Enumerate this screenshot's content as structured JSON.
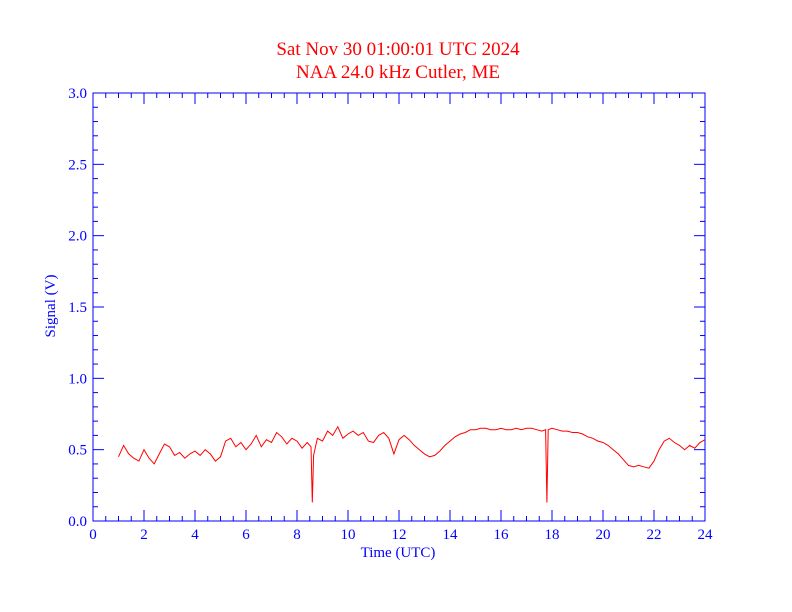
{
  "chart_data": {
    "type": "line",
    "title": "Sat Nov 30 01:00:01 UTC 2024",
    "subtitle": "NAA 24.0 kHz Cutler, ME",
    "xlabel": "Time (UTC)",
    "ylabel": "Signal (V)",
    "xlim": [
      0,
      24
    ],
    "ylim": [
      0.0,
      3.0
    ],
    "xticks": [
      "0",
      "2",
      "4",
      "6",
      "8",
      "10",
      "12",
      "14",
      "16",
      "18",
      "20",
      "22",
      "24"
    ],
    "yticks": [
      "0.0",
      "0.5",
      "1.0",
      "1.5",
      "2.0",
      "2.5",
      "3.0"
    ],
    "grid": false,
    "colors": {
      "axis": "#0000ff",
      "title": "#ff0000",
      "series": "#ff0000"
    },
    "series": [
      {
        "x": [
          1.0,
          1.2,
          1.4,
          1.6,
          1.8,
          2.0,
          2.2,
          2.4,
          2.6,
          2.8,
          3.0,
          3.2,
          3.4,
          3.6,
          3.8,
          4.0,
          4.2,
          4.4,
          4.6,
          4.8,
          5.0,
          5.2,
          5.4,
          5.6,
          5.8,
          6.0,
          6.2,
          6.4,
          6.6,
          6.8,
          7.0,
          7.2,
          7.4,
          7.6,
          7.8,
          8.0,
          8.2,
          8.4,
          8.55,
          8.6,
          8.65,
          8.8,
          9.0,
          9.2,
          9.4,
          9.6,
          9.8,
          10.0,
          10.2,
          10.4,
          10.6,
          10.8,
          11.0,
          11.2,
          11.4,
          11.6,
          11.8,
          12.0,
          12.2,
          12.4,
          12.6,
          12.8,
          13.0,
          13.2,
          13.4,
          13.6,
          13.8,
          14.0,
          14.2,
          14.4,
          14.6,
          14.8,
          15.0,
          15.2,
          15.4,
          15.6,
          15.8,
          16.0,
          16.2,
          16.4,
          16.6,
          16.8,
          17.0,
          17.2,
          17.4,
          17.6,
          17.75,
          17.8,
          17.85,
          18.0,
          18.2,
          18.4,
          18.6,
          18.8,
          19.0,
          19.2,
          19.4,
          19.6,
          19.8,
          20.0,
          20.2,
          20.4,
          20.6,
          20.8,
          21.0,
          21.2,
          21.4,
          21.6,
          21.8,
          22.0,
          22.2,
          22.4,
          22.6,
          22.8,
          23.0,
          23.2,
          23.4,
          23.6,
          23.8,
          24.0
        ],
        "values": [
          0.45,
          0.53,
          0.47,
          0.44,
          0.42,
          0.5,
          0.44,
          0.4,
          0.47,
          0.54,
          0.52,
          0.46,
          0.48,
          0.44,
          0.47,
          0.49,
          0.46,
          0.5,
          0.47,
          0.42,
          0.45,
          0.56,
          0.58,
          0.52,
          0.55,
          0.5,
          0.54,
          0.6,
          0.52,
          0.57,
          0.55,
          0.62,
          0.59,
          0.54,
          0.58,
          0.56,
          0.51,
          0.55,
          0.52,
          0.13,
          0.46,
          0.58,
          0.56,
          0.63,
          0.6,
          0.66,
          0.58,
          0.61,
          0.63,
          0.6,
          0.62,
          0.56,
          0.55,
          0.6,
          0.62,
          0.58,
          0.47,
          0.57,
          0.6,
          0.57,
          0.53,
          0.5,
          0.47,
          0.45,
          0.46,
          0.49,
          0.53,
          0.56,
          0.59,
          0.61,
          0.62,
          0.64,
          0.64,
          0.65,
          0.65,
          0.64,
          0.64,
          0.65,
          0.64,
          0.64,
          0.65,
          0.64,
          0.65,
          0.65,
          0.64,
          0.63,
          0.64,
          0.13,
          0.64,
          0.65,
          0.64,
          0.63,
          0.63,
          0.62,
          0.62,
          0.61,
          0.59,
          0.58,
          0.56,
          0.55,
          0.53,
          0.5,
          0.47,
          0.43,
          0.39,
          0.38,
          0.39,
          0.38,
          0.37,
          0.42,
          0.5,
          0.56,
          0.58,
          0.55,
          0.53,
          0.5,
          0.53,
          0.51,
          0.55,
          0.57
        ]
      }
    ]
  }
}
